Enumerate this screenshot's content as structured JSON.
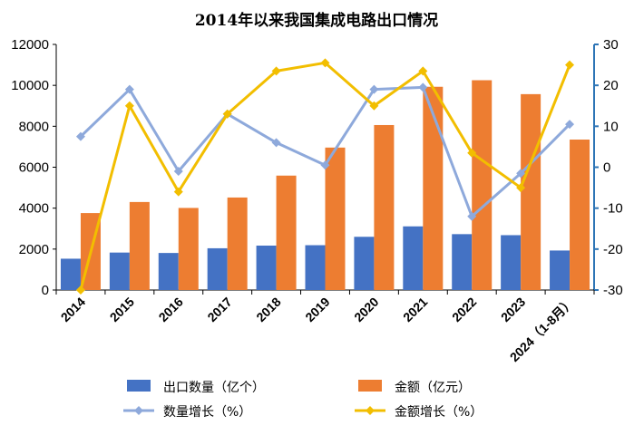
{
  "chart_data": {
    "type": "bar+line",
    "title": "2014年以来我国集成电路出口情况",
    "categories": [
      "2014",
      "2015",
      "2016",
      "2017",
      "2018",
      "2019",
      "2020",
      "2021",
      "2022",
      "2023",
      "2024（1-8月）"
    ],
    "series": [
      {
        "name": "出口数量（亿个）",
        "type": "bar",
        "axis": "left",
        "color": "#4472C4",
        "values": [
          1530,
          1830,
          1810,
          2040,
          2170,
          2190,
          2600,
          3110,
          2730,
          2680,
          1930
        ]
      },
      {
        "name": "金额（亿元）",
        "type": "bar",
        "axis": "left",
        "color": "#ED7D31",
        "values": [
          3760,
          4300,
          4010,
          4520,
          5590,
          6960,
          8060,
          9930,
          10250,
          9570,
          7350
        ]
      },
      {
        "name": "数量增长（%）",
        "type": "line",
        "axis": "right",
        "color": "#8EA9DB",
        "marker": "diamond",
        "values": [
          7.5,
          19,
          -1,
          13,
          6,
          0.5,
          19,
          19.5,
          -12,
          -1.5,
          10.5
        ]
      },
      {
        "name": "金额增长（%）",
        "type": "line",
        "axis": "right",
        "color": "#F2BE00",
        "marker": "diamond",
        "values": [
          -30,
          15,
          -6,
          13,
          23.5,
          25.5,
          15,
          23.5,
          3.5,
          -5,
          25
        ]
      }
    ],
    "yleft": {
      "min": 0,
      "max": 12000,
      "ticks": [
        0,
        2000,
        4000,
        6000,
        8000,
        10000,
        12000
      ]
    },
    "yright": {
      "min": -30,
      "max": 30,
      "ticks": [
        -30,
        -20,
        -10,
        0,
        10,
        20,
        30
      ],
      "color": "#2E75B6"
    },
    "grid": false,
    "legend_position": "bottom"
  }
}
